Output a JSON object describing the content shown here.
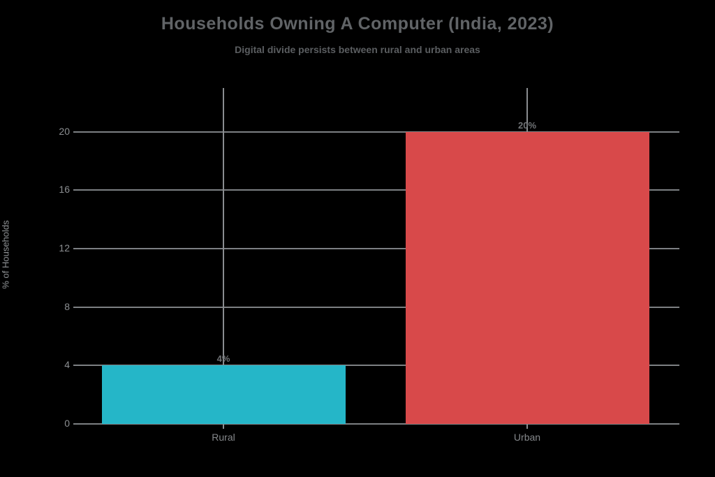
{
  "chart_data": {
    "type": "bar",
    "title": "Households Owning A Computer (India, 2023)",
    "subtitle": "Digital divide persists between rural and urban areas",
    "ylabel": "% of Households",
    "xlabel": "",
    "categories": [
      "Rural",
      "Urban"
    ],
    "values": [
      4,
      20
    ],
    "value_labels": [
      "4%",
      "20%"
    ],
    "bar_colors": [
      "#25b6c8",
      "#d8494a"
    ],
    "y_ticks": [
      0,
      4,
      8,
      12,
      16,
      20
    ],
    "ylim": [
      0,
      23
    ],
    "grid": true,
    "legend_position": "none",
    "colors": {
      "background": "#000000",
      "title_text": "#616467",
      "subtitle_text": "#5b5e61",
      "gridline": "#7d8083",
      "tick_text": "#8c8f92",
      "category_text": "#85888b",
      "value_label_text": "#707376",
      "axis_title_text": "#909396"
    }
  }
}
